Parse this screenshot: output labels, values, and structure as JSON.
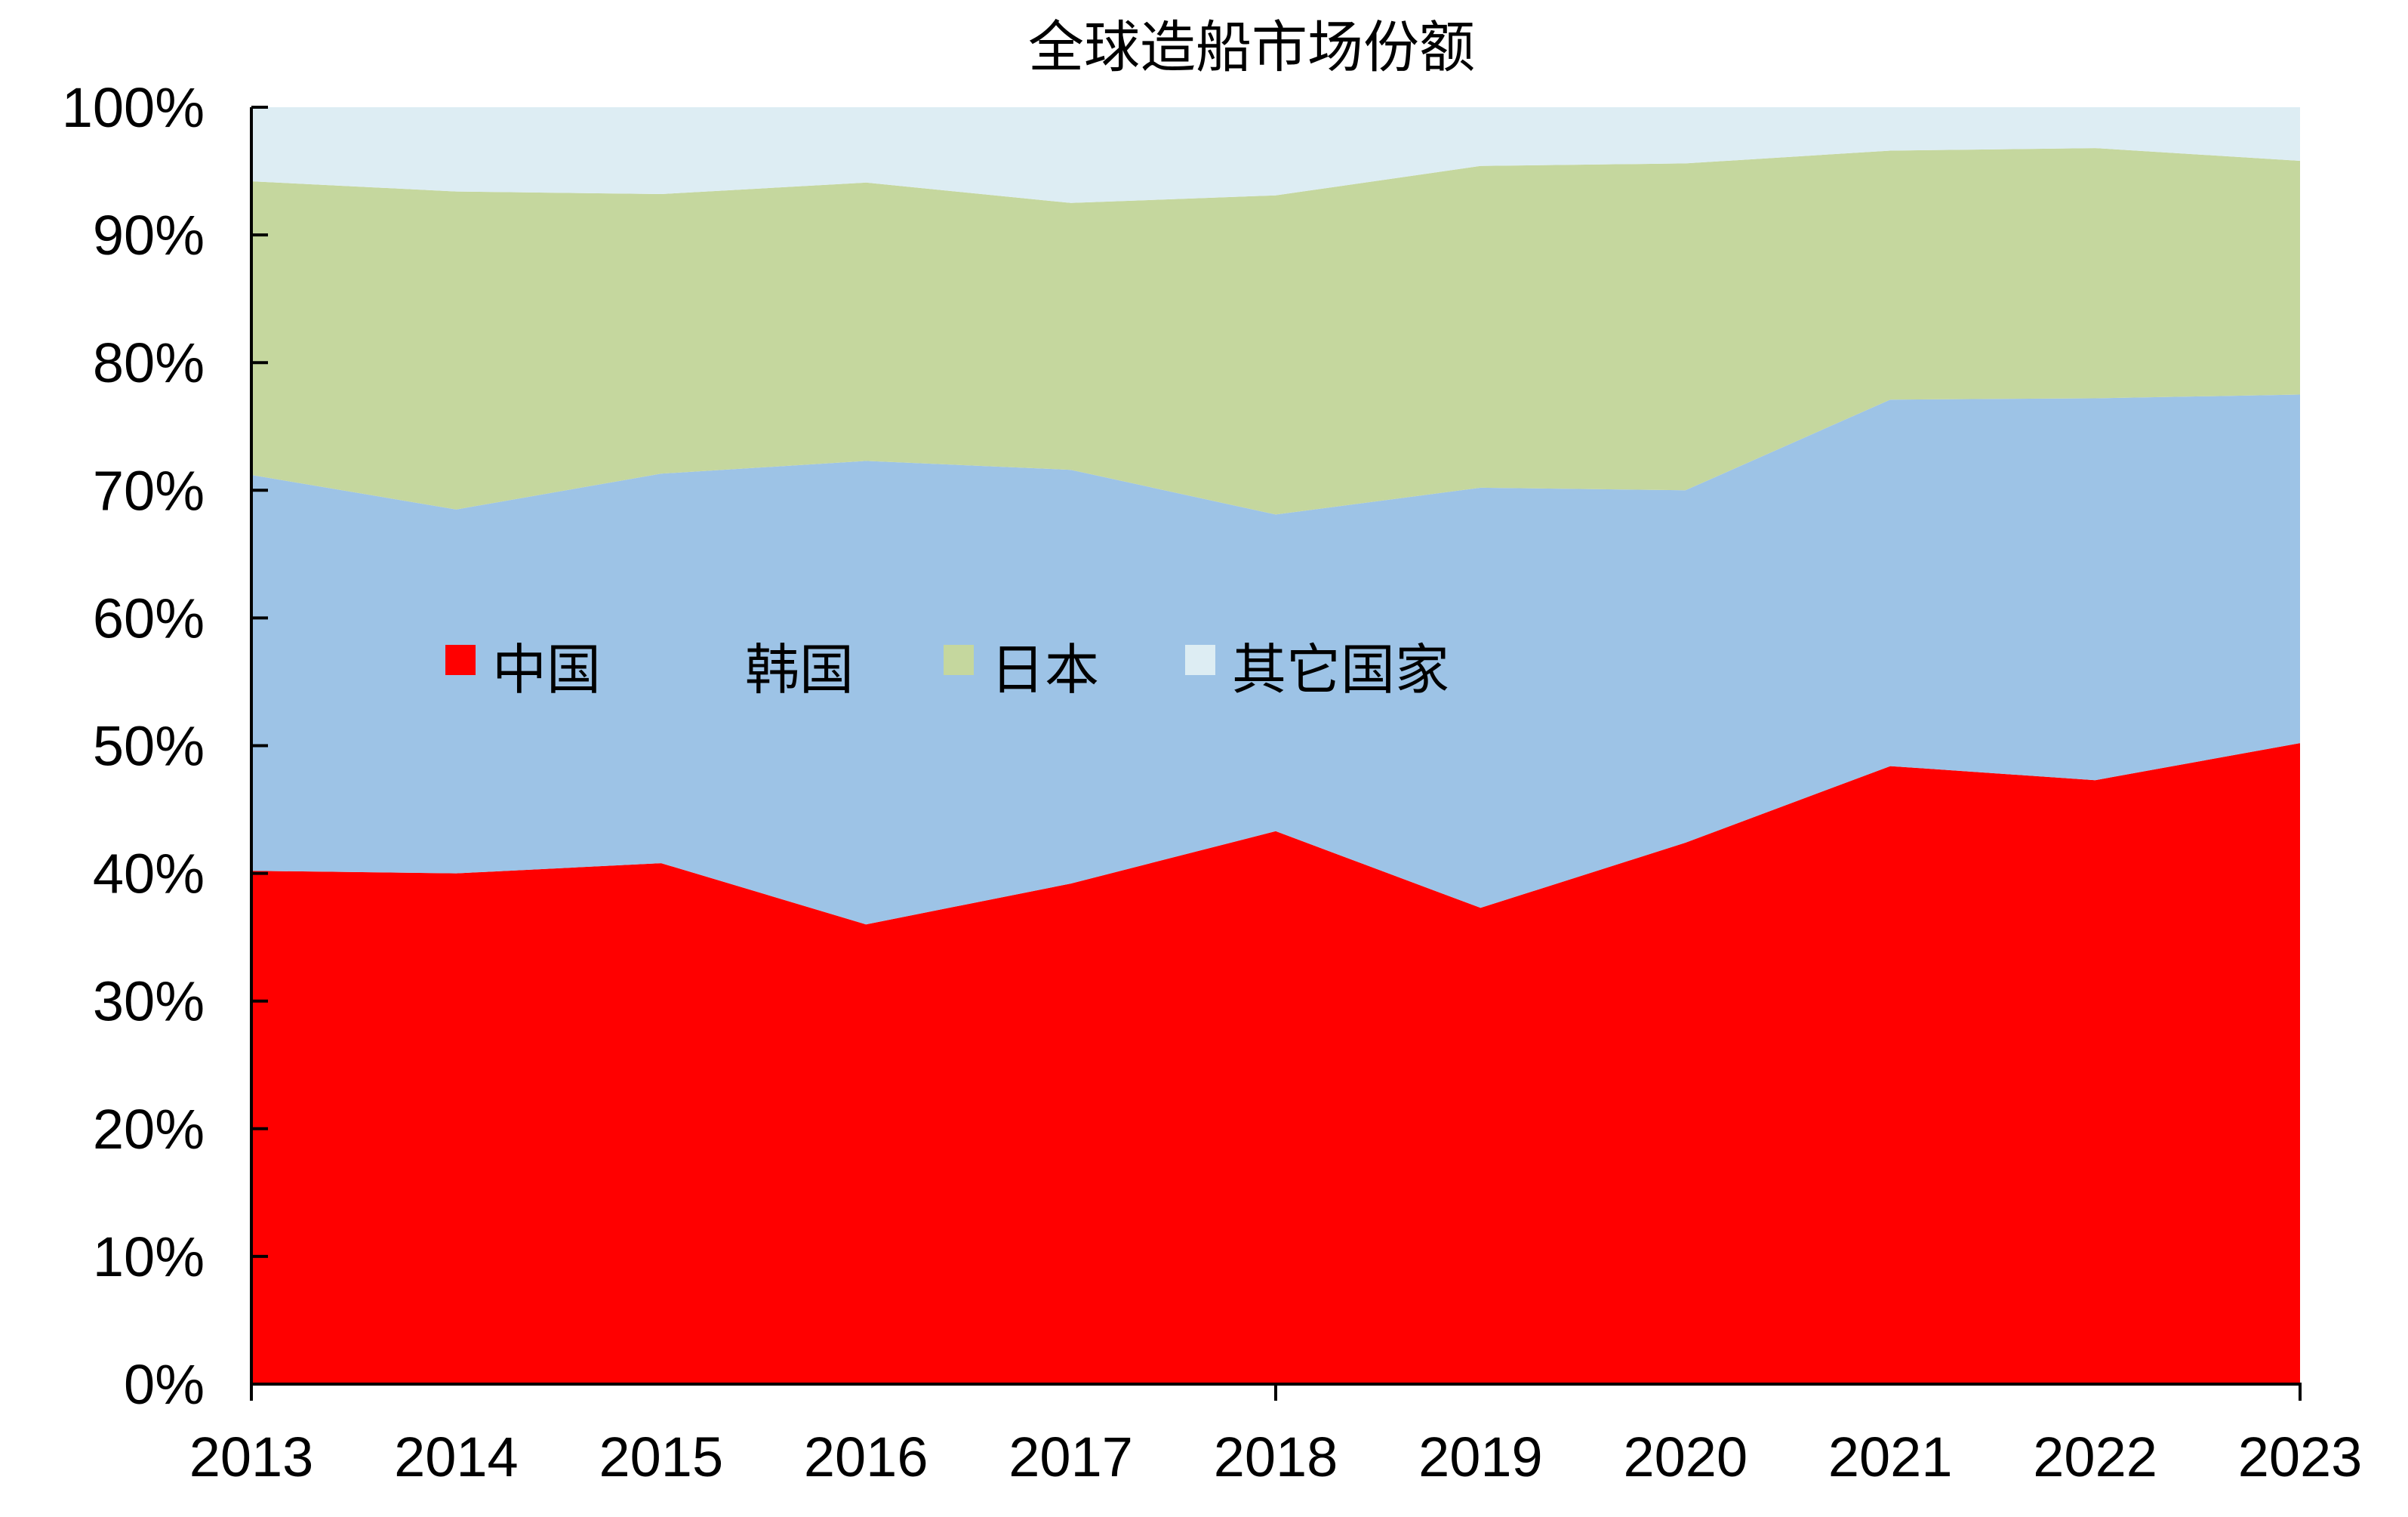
{
  "chart_data": {
    "type": "area",
    "stacked": true,
    "normalized": true,
    "title": "全球造船市场份额",
    "xlabel": "",
    "ylabel": "",
    "x": [
      "2013",
      "2014",
      "2015",
      "2016",
      "2017",
      "2018",
      "2019",
      "2020",
      "2021",
      "2022",
      "2023"
    ],
    "ylim": [
      0,
      100
    ],
    "yticks": [
      "0%",
      "10%",
      "20%",
      "30%",
      "40%",
      "50%",
      "60%",
      "70%",
      "80%",
      "90%",
      "100%"
    ],
    "grid": false,
    "legend_position": "center-left inside plot",
    "series": [
      {
        "name": "中国",
        "color": "#FF0000",
        "values": [
          40.2,
          40.0,
          40.8,
          36.0,
          39.2,
          43.3,
          37.3,
          42.4,
          48.4,
          47.3,
          50.2
        ]
      },
      {
        "name": "韩国",
        "color": "#9DC3E6",
        "values": [
          31.0,
          28.5,
          30.5,
          36.3,
          32.4,
          24.8,
          32.9,
          27.6,
          28.7,
          29.9,
          27.3
        ]
      },
      {
        "name": "日本",
        "color": "#C5D79E",
        "values": [
          23.0,
          24.9,
          21.9,
          21.8,
          20.9,
          25.0,
          25.2,
          25.6,
          19.5,
          19.6,
          18.3
        ]
      },
      {
        "name": "其它国家",
        "color": "#DDEDF3",
        "values": [
          5.8,
          6.6,
          6.8,
          5.9,
          7.5,
          6.9,
          4.6,
          4.4,
          3.4,
          3.2,
          4.2
        ]
      }
    ]
  }
}
